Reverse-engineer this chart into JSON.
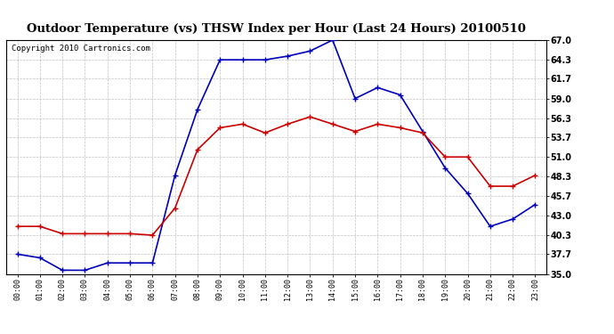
{
  "title": "Outdoor Temperature (vs) THSW Index per Hour (Last 24 Hours) 20100510",
  "copyright": "Copyright 2010 Cartronics.com",
  "hours": [
    "00:00",
    "01:00",
    "02:00",
    "03:00",
    "04:00",
    "05:00",
    "06:00",
    "07:00",
    "08:00",
    "09:00",
    "10:00",
    "11:00",
    "12:00",
    "13:00",
    "14:00",
    "15:00",
    "16:00",
    "17:00",
    "18:00",
    "19:00",
    "20:00",
    "21:00",
    "22:00",
    "23:00"
  ],
  "thsw": [
    37.7,
    37.2,
    35.5,
    35.5,
    36.5,
    36.5,
    36.5,
    48.5,
    57.5,
    64.3,
    64.3,
    64.3,
    64.8,
    65.5,
    67.0,
    59.0,
    60.5,
    59.5,
    54.5,
    49.5,
    46.0,
    41.5,
    42.5,
    44.5
  ],
  "temp": [
    41.5,
    41.5,
    40.5,
    40.5,
    40.5,
    40.5,
    40.3,
    44.0,
    52.0,
    55.0,
    55.5,
    54.3,
    55.5,
    56.5,
    55.5,
    54.5,
    55.5,
    55.0,
    54.3,
    51.0,
    51.0,
    47.0,
    47.0,
    48.5
  ],
  "ylim": [
    35.0,
    67.0
  ],
  "yticks": [
    35.0,
    37.7,
    40.3,
    43.0,
    45.7,
    48.3,
    51.0,
    53.7,
    56.3,
    59.0,
    61.7,
    64.3,
    67.0
  ],
  "thsw_color": "#0000bb",
  "temp_color": "#cc0000",
  "bg_color": "#ffffff",
  "grid_color": "#bbbbbb",
  "title_fontsize": 9.5,
  "copyright_fontsize": 6.5
}
